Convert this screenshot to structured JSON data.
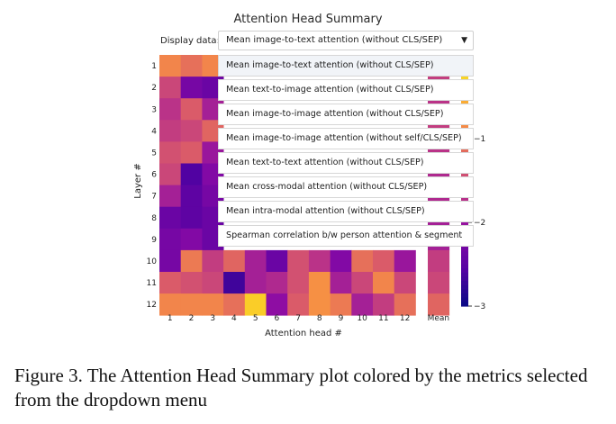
{
  "title": "Attention Head Summary",
  "dropdown": {
    "label": "Display data:",
    "selected": "Mean image-to-text attention (without CLS/SEP)",
    "arrow_icon": "triangle-down-icon",
    "options": [
      "Mean image-to-text attention (without CLS/SEP)",
      "Mean text-to-image attention (without CLS/SEP)",
      "Mean image-to-image attention (without CLS/SEP)",
      "Mean image-to-image attention (without self/CLS/SEP)",
      "Mean text-to-text attention (without CLS/SEP)",
      "Mean cross-modal attention (without CLS/SEP)",
      "Mean intra-modal attention (without CLS/SEP)",
      "Spearman correlation b/w person attention & segment"
    ]
  },
  "chart_data": {
    "type": "heatmap",
    "xlabel": "Attention head #",
    "ylabel": "Layer #",
    "x_categories": [
      "1",
      "2",
      "3",
      "4",
      "5",
      "6",
      "7",
      "8",
      "9",
      "10",
      "11",
      "12"
    ],
    "y_categories": [
      "1",
      "2",
      "3",
      "4",
      "5",
      "6",
      "7",
      "8",
      "9",
      "10",
      "11",
      "12"
    ],
    "mean_column_label": "Mean",
    "colorbar_ticks": [
      "−1",
      "−2",
      "−3"
    ],
    "colors": {
      "low": "#1a0c86",
      "mid": "#c5427c",
      "high": "#f8e525"
    },
    "values": [
      [
        -0.9,
        -1.1,
        -0.9,
        null,
        null,
        null,
        null,
        null,
        null,
        null,
        null,
        null,
        -1.3
      ],
      [
        -1.5,
        -2.3,
        -2.4,
        null,
        null,
        null,
        null,
        null,
        null,
        null,
        null,
        null,
        -1.6
      ],
      [
        -1.7,
        -1.3,
        -1.9,
        null,
        null,
        null,
        null,
        null,
        null,
        null,
        null,
        null,
        -1.7
      ],
      [
        -1.6,
        -1.5,
        -1.2,
        null,
        null,
        null,
        null,
        null,
        null,
        null,
        null,
        null,
        -1.6
      ],
      [
        -1.4,
        -1.3,
        -2.0,
        null,
        null,
        null,
        null,
        null,
        null,
        null,
        null,
        null,
        -1.7
      ],
      [
        -1.5,
        -2.6,
        -2.2,
        null,
        null,
        null,
        null,
        null,
        null,
        null,
        null,
        null,
        -1.8
      ],
      [
        -1.9,
        -2.5,
        -2.3,
        null,
        null,
        null,
        null,
        null,
        null,
        null,
        null,
        null,
        -1.8
      ],
      [
        -2.4,
        -2.5,
        -2.4,
        null,
        null,
        null,
        null,
        null,
        null,
        null,
        null,
        null,
        -1.9
      ],
      [
        -2.3,
        -2.2,
        -2.4,
        null,
        null,
        null,
        null,
        null,
        null,
        null,
        null,
        null,
        -1.9
      ],
      [
        -2.3,
        -1.0,
        -1.6,
        -1.2,
        -1.9,
        -2.4,
        -1.4,
        -1.7,
        -2.2,
        -1.1,
        -1.3,
        -2.0,
        -1.6
      ],
      [
        -1.3,
        -1.4,
        -1.5,
        -2.7,
        -1.9,
        -1.8,
        -1.4,
        -0.8,
        -1.9,
        -1.5,
        -0.9,
        -1.5,
        -1.5
      ],
      [
        -0.9,
        -0.9,
        -0.9,
        -1.1,
        -0.3,
        -2.1,
        -1.3,
        -0.8,
        -1.0,
        -1.9,
        -1.6,
        -1.1,
        -1.2
      ]
    ]
  },
  "caption": "Figure 3.  The Attention Head Summary plot colored by the metrics selected from the dropdown menu"
}
